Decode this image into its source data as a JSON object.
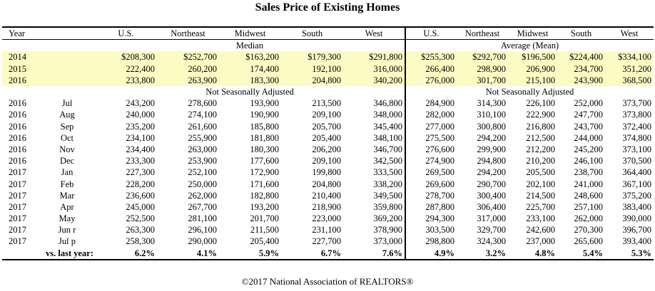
{
  "title": "Sales Price of Existing Homes",
  "columns": [
    "Year",
    "U.S.",
    "Northeast",
    "Midwest",
    "South",
    "West",
    "U.S.",
    "Northeast",
    "Midwest",
    "South",
    "West"
  ],
  "section_median": "Median",
  "section_mean": "Average (Mean)",
  "annual_rows": [
    [
      "2014",
      "$208,300",
      "$252,700",
      "$163,200",
      "$179,300",
      "$291,800",
      "$255,300",
      "$292,700",
      "$196,500",
      "$224,400",
      "$334,100"
    ],
    [
      "2015",
      "222,400",
      "260,200",
      "174,400",
      "192,100",
      "316,000",
      "266,400",
      "298,900",
      "206,900",
      "234,700",
      "351,200"
    ],
    [
      "2016",
      "233,800",
      "263,900",
      "183,300",
      "204,800",
      "340,200",
      "276,000",
      "301,700",
      "215,100",
      "243,900",
      "368,500"
    ]
  ],
  "nsa_label_left": "Not Seasonally Adjusted",
  "nsa_label_right": "Not Seasonally Adjusted",
  "monthly_rows": [
    [
      "2016",
      "Jul",
      "243,200",
      "278,600",
      "193,900",
      "213,500",
      "346,800",
      "284,900",
      "314,300",
      "226,100",
      "252,000",
      "373,700"
    ],
    [
      "2016",
      "Aug",
      "240,000",
      "274,100",
      "190,900",
      "209,100",
      "348,000",
      "282,000",
      "310,100",
      "222,900",
      "247,700",
      "373,800"
    ],
    [
      "2016",
      "Sep",
      "235,200",
      "261,600",
      "185,800",
      "205,700",
      "345,400",
      "277,000",
      "300,800",
      "216,800",
      "243,700",
      "372,400"
    ],
    [
      "2016",
      "Oct",
      "234,100",
      "255,900",
      "181,800",
      "205,400",
      "348,100",
      "275,500",
      "294,200",
      "212,500",
      "244,000",
      "374,800"
    ],
    [
      "2016",
      "Nov",
      "234,400",
      "263,000",
      "180,300",
      "206,200",
      "346,700",
      "276,600",
      "299,900",
      "212,200",
      "245,200",
      "373,100"
    ],
    [
      "2016",
      "Dec",
      "233,300",
      "253,900",
      "177,600",
      "209,100",
      "342,500",
      "274,900",
      "294,800",
      "210,200",
      "246,100",
      "370,500"
    ],
    [
      "2017",
      "Jan",
      "227,300",
      "252,100",
      "172,900",
      "199,800",
      "333,500",
      "269,500",
      "294,200",
      "205,500",
      "238,700",
      "364,400"
    ],
    [
      "2017",
      "Feb",
      "228,200",
      "250,000",
      "171,600",
      "204,800",
      "338,200",
      "269,600",
      "290,700",
      "202,100",
      "241,000",
      "367,100"
    ],
    [
      "2017",
      "Mar",
      "236,600",
      "262,000",
      "182,800",
      "210,400",
      "349,500",
      "278,700",
      "300,400",
      "214,500",
      "248,600",
      "375,200"
    ],
    [
      "2017",
      "Apr",
      "245,000",
      "267,700",
      "193,200",
      "218,900",
      "359,800",
      "287,800",
      "306,400",
      "225,700",
      "257,100",
      "383,400"
    ],
    [
      "2017",
      "May",
      "252,500",
      "281,100",
      "201,700",
      "223,000",
      "369,200",
      "294,300",
      "317,000",
      "233,100",
      "262,000",
      "390,000"
    ],
    [
      "2017",
      "Jun r",
      "263,300",
      "296,100",
      "211,500",
      "231,100",
      "378,900",
      "303,500",
      "329,700",
      "242,600",
      "270,300",
      "396,700"
    ],
    [
      "2017",
      "Jul p",
      "258,300",
      "290,000",
      "205,400",
      "227,700",
      "373,000",
      "298,800",
      "324,300",
      "237,000",
      "265,600",
      "393,400"
    ]
  ],
  "yoy_label": "vs. last year:",
  "yoy_values": [
    "6.2%",
    "4.1%",
    "5.9%",
    "6.7%",
    "7.6%",
    "4.9%",
    "3.2%",
    "4.8%",
    "5.4%",
    "5.3%"
  ],
  "footer": "©2017 National Association of REALTORS®",
  "colors": {
    "highlight": "#fdfbc4",
    "rule": "#000000"
  }
}
